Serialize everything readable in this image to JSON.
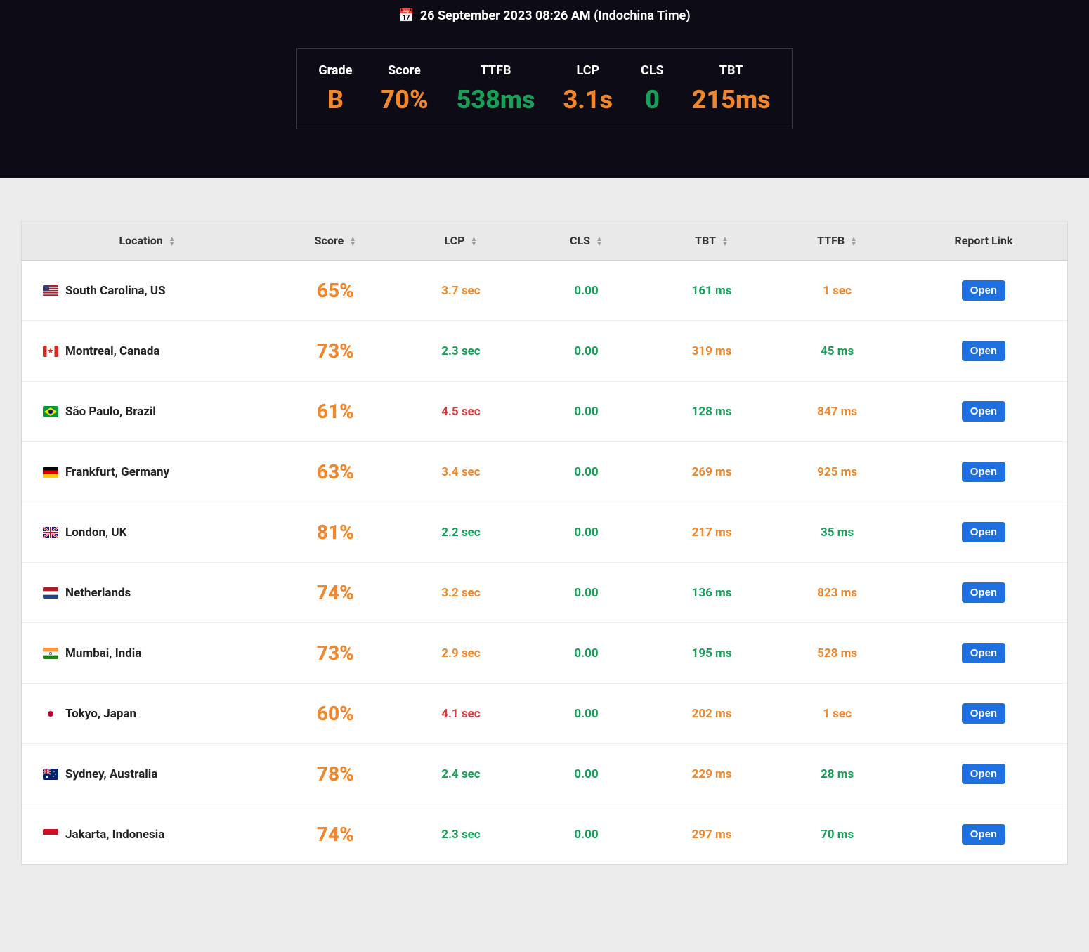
{
  "colors": {
    "orange": "#f0872d",
    "green": "#18a05a",
    "red": "#d63d3d",
    "hero_bg": "#0d0b16",
    "page_bg": "#ececec",
    "btn_bg": "#1e6fe0"
  },
  "timestamp": {
    "icon": "📅",
    "text": "26 September 2023 08:26 AM (Indochina Time)"
  },
  "summary": [
    {
      "label": "Grade",
      "value": "B",
      "color": "orange"
    },
    {
      "label": "Score",
      "value": "70%",
      "color": "orange"
    },
    {
      "label": "TTFB",
      "value": "538ms",
      "color": "green"
    },
    {
      "label": "LCP",
      "value": "3.1s",
      "color": "orange"
    },
    {
      "label": "CLS",
      "value": "0",
      "color": "green"
    },
    {
      "label": "TBT",
      "value": "215ms",
      "color": "orange"
    }
  ],
  "table": {
    "columns": [
      {
        "label": "Location",
        "sortable": true
      },
      {
        "label": "Score",
        "sortable": true
      },
      {
        "label": "LCP",
        "sortable": true
      },
      {
        "label": "CLS",
        "sortable": true
      },
      {
        "label": "TBT",
        "sortable": true
      },
      {
        "label": "TTFB",
        "sortable": true
      },
      {
        "label": "Report Link",
        "sortable": false
      }
    ],
    "open_label": "Open",
    "rows": [
      {
        "flag": "us",
        "location": "South Carolina, US",
        "score": "65%",
        "score_color": "orange",
        "lcp": "3.7 sec",
        "lcp_color": "orange",
        "cls": "0.00",
        "cls_color": "green",
        "tbt": "161 ms",
        "tbt_color": "green",
        "ttfb": "1 sec",
        "ttfb_color": "orange"
      },
      {
        "flag": "ca",
        "location": "Montreal, Canada",
        "score": "73%",
        "score_color": "orange",
        "lcp": "2.3 sec",
        "lcp_color": "green",
        "cls": "0.00",
        "cls_color": "green",
        "tbt": "319 ms",
        "tbt_color": "orange",
        "ttfb": "45 ms",
        "ttfb_color": "green"
      },
      {
        "flag": "br",
        "location": "São Paulo, Brazil",
        "score": "61%",
        "score_color": "orange",
        "lcp": "4.5 sec",
        "lcp_color": "red",
        "cls": "0.00",
        "cls_color": "green",
        "tbt": "128 ms",
        "tbt_color": "green",
        "ttfb": "847 ms",
        "ttfb_color": "orange"
      },
      {
        "flag": "de",
        "location": "Frankfurt, Germany",
        "score": "63%",
        "score_color": "orange",
        "lcp": "3.4 sec",
        "lcp_color": "orange",
        "cls": "0.00",
        "cls_color": "green",
        "tbt": "269 ms",
        "tbt_color": "orange",
        "ttfb": "925 ms",
        "ttfb_color": "orange"
      },
      {
        "flag": "gb",
        "location": "London, UK",
        "score": "81%",
        "score_color": "orange",
        "lcp": "2.2 sec",
        "lcp_color": "green",
        "cls": "0.00",
        "cls_color": "green",
        "tbt": "217 ms",
        "tbt_color": "orange",
        "ttfb": "35 ms",
        "ttfb_color": "green"
      },
      {
        "flag": "nl",
        "location": "Netherlands",
        "score": "74%",
        "score_color": "orange",
        "lcp": "3.2 sec",
        "lcp_color": "orange",
        "cls": "0.00",
        "cls_color": "green",
        "tbt": "136 ms",
        "tbt_color": "green",
        "ttfb": "823 ms",
        "ttfb_color": "orange"
      },
      {
        "flag": "in",
        "location": "Mumbai, India",
        "score": "73%",
        "score_color": "orange",
        "lcp": "2.9 sec",
        "lcp_color": "orange",
        "cls": "0.00",
        "cls_color": "green",
        "tbt": "195 ms",
        "tbt_color": "green",
        "ttfb": "528 ms",
        "ttfb_color": "orange"
      },
      {
        "flag": "jp",
        "location": "Tokyo, Japan",
        "score": "60%",
        "score_color": "orange",
        "lcp": "4.1 sec",
        "lcp_color": "red",
        "cls": "0.00",
        "cls_color": "green",
        "tbt": "202 ms",
        "tbt_color": "orange",
        "ttfb": "1 sec",
        "ttfb_color": "orange"
      },
      {
        "flag": "au",
        "location": "Sydney, Australia",
        "score": "78%",
        "score_color": "orange",
        "lcp": "2.4 sec",
        "lcp_color": "green",
        "cls": "0.00",
        "cls_color": "green",
        "tbt": "229 ms",
        "tbt_color": "orange",
        "ttfb": "28 ms",
        "ttfb_color": "green"
      },
      {
        "flag": "id",
        "location": "Jakarta, Indonesia",
        "score": "74%",
        "score_color": "orange",
        "lcp": "2.3 sec",
        "lcp_color": "green",
        "cls": "0.00",
        "cls_color": "green",
        "tbt": "297 ms",
        "tbt_color": "orange",
        "ttfb": "70 ms",
        "ttfb_color": "green"
      }
    ]
  }
}
